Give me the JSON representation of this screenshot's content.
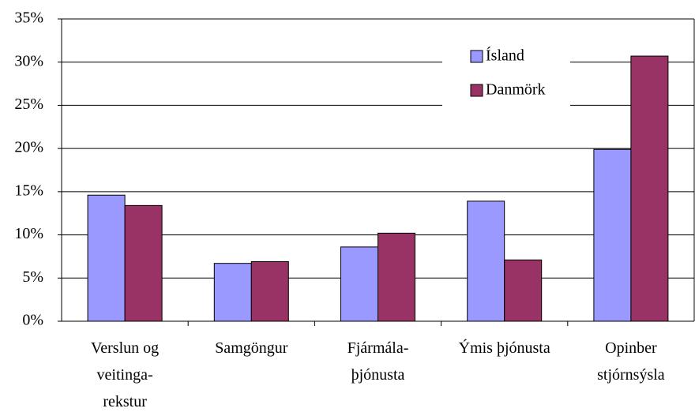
{
  "chart_data": {
    "type": "bar",
    "categories": [
      "Verslun og\nveitinga-\nrekstur",
      "Samgöngur",
      "Fjármála-\nþjónusta",
      "Ýmis þjónusta",
      "Opinber\nstjórnsýsla"
    ],
    "series": [
      {
        "name": "Ísland",
        "color": "#9999ff",
        "values": [
          14.6,
          6.7,
          8.6,
          13.9,
          19.9
        ]
      },
      {
        "name": "Danmörk",
        "color": "#993366",
        "values": [
          13.4,
          6.9,
          10.2,
          7.1,
          30.7
        ]
      }
    ],
    "ylim": [
      0,
      35
    ],
    "yticks": [
      {
        "value": 0,
        "label": "0%"
      },
      {
        "value": 5,
        "label": "5%"
      },
      {
        "value": 10,
        "label": "10%"
      },
      {
        "value": 15,
        "label": "15%"
      },
      {
        "value": 20,
        "label": "20%"
      },
      {
        "value": 25,
        "label": "25%"
      },
      {
        "value": 30,
        "label": "30%"
      },
      {
        "value": 35,
        "label": "35%"
      }
    ],
    "grid": true
  }
}
